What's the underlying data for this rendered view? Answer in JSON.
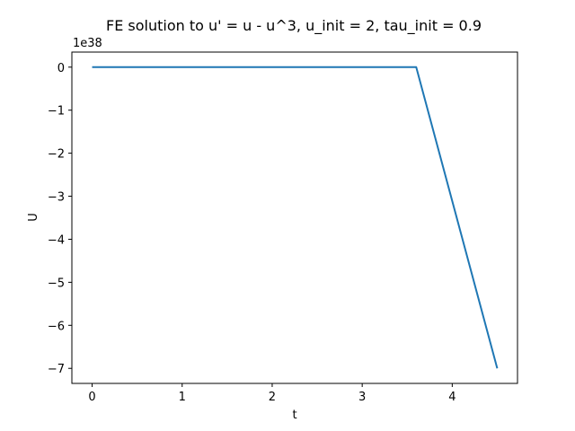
{
  "chart_data": {
    "type": "line",
    "title": "FE solution to u' = u - u^3, u_init = 2, tau_init = 0.9",
    "xlabel": "t",
    "ylabel": "U",
    "y_offset_label": "1e38",
    "xlim": [
      -0.225,
      4.725
    ],
    "ylim": [
      -7.35,
      0.35
    ],
    "x_ticks": [
      0,
      1,
      2,
      3,
      4
    ],
    "x_tick_labels": [
      "0",
      "1",
      "2",
      "3",
      "4"
    ],
    "y_ticks": [
      0,
      -1,
      -2,
      -3,
      -4,
      -5,
      -6,
      -7
    ],
    "y_tick_labels": [
      "0",
      "−1",
      "−2",
      "−3",
      "−4",
      "−5",
      "−6",
      "−7"
    ],
    "grid": false,
    "series": [
      {
        "color": "#1f77b4",
        "x": [
          0,
          3.6,
          4.5
        ],
        "y": [
          0,
          0,
          -7.0
        ]
      }
    ]
  }
}
